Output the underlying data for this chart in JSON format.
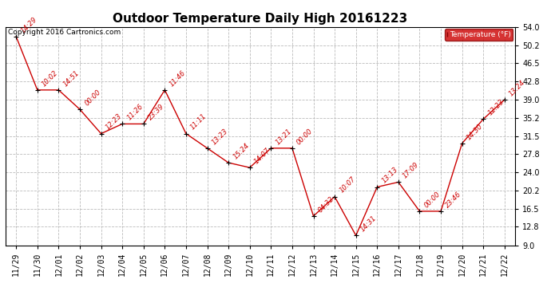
{
  "title": "Outdoor Temperature Daily High 20161223",
  "copyright": "Copyright 2016 Cartronics.com",
  "legend_label": "Temperature (°F)",
  "x_labels": [
    "11/29",
    "11/30",
    "12/01",
    "12/02",
    "12/03",
    "12/04",
    "12/05",
    "12/06",
    "12/07",
    "12/08",
    "12/09",
    "12/10",
    "12/11",
    "12/12",
    "12/13",
    "12/14",
    "12/15",
    "12/16",
    "12/17",
    "12/18",
    "12/19",
    "12/20",
    "12/21",
    "12/22"
  ],
  "y_values": [
    52.0,
    41.0,
    41.0,
    37.0,
    32.0,
    34.0,
    34.0,
    41.0,
    32.0,
    29.0,
    26.0,
    25.0,
    29.0,
    29.0,
    15.0,
    19.0,
    11.0,
    21.0,
    22.0,
    16.0,
    16.0,
    30.0,
    35.0,
    39.0
  ],
  "time_labels": [
    "14:29",
    "10:02",
    "14:51",
    "00:00",
    "12:23",
    "11:26",
    "23:39",
    "11:46",
    "11:11",
    "13:23",
    "15:24",
    "14:07",
    "13:21",
    "00:00",
    "04:32",
    "10:07",
    "14:31",
    "13:13",
    "17:09",
    "00:00",
    "23:46",
    "14:30",
    "12:23",
    "13:24"
  ],
  "ylim": [
    9.0,
    54.0
  ],
  "yticks": [
    9.0,
    12.8,
    16.5,
    20.2,
    24.0,
    27.8,
    31.5,
    35.2,
    39.0,
    42.8,
    46.5,
    50.2,
    54.0
  ],
  "ytick_labels": [
    "9.0",
    "12.8",
    "16.5",
    "20.2",
    "24.0",
    "27.8",
    "31.5",
    "35.2",
    "39.0",
    "42.8",
    "46.5",
    "50.2",
    "54.0"
  ],
  "line_color": "#cc0000",
  "marker_color": "#000000",
  "annotation_color": "#cc0000",
  "bg_color": "#ffffff",
  "grid_color": "#bbbbbb",
  "legend_bg": "#cc0000",
  "legend_text_color": "#ffffff",
  "title_fontsize": 11,
  "annotation_fontsize": 6,
  "label_fontsize": 7,
  "copyright_fontsize": 6.5
}
